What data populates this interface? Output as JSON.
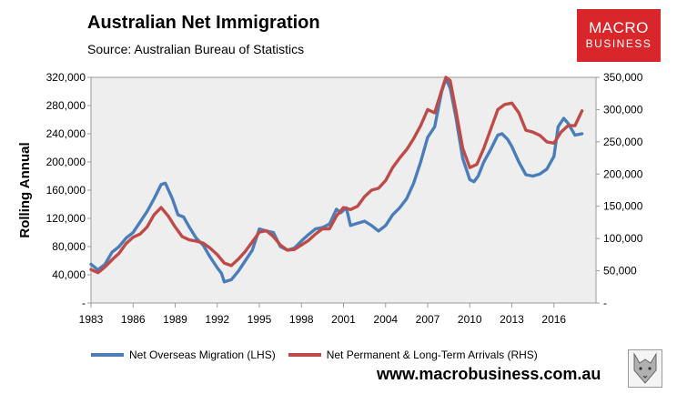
{
  "header": {
    "title": "Australian Net Immigration",
    "subtitle": "Source: Australian Bureau of Statistics"
  },
  "logo": {
    "line1": "MACRO",
    "line2": "BUSINESS"
  },
  "footer": {
    "website": "www.macrobusiness.com.au"
  },
  "icons": {
    "logo_image": "wolf-icon"
  },
  "colors": {
    "series_lhs": "#4a7ebb",
    "series_rhs": "#be4b48",
    "plot_bg": "#eeeeee",
    "brand": "#d9262a"
  },
  "chart_data": {
    "type": "line",
    "title": "Australian Net Immigration",
    "ylabel": "Rolling Annual",
    "xlabel": "",
    "x_ticks": [
      "1983",
      "1986",
      "1989",
      "1992",
      "1995",
      "1998",
      "2001",
      "2004",
      "2007",
      "2010",
      "2013",
      "2016"
    ],
    "xlim": [
      1983,
      2019
    ],
    "y_left": {
      "lim": [
        0,
        320000
      ],
      "ticks": [
        {
          "value": 0,
          "label": "-"
        },
        {
          "value": 40000,
          "label": "40,000"
        },
        {
          "value": 80000,
          "label": "80,000"
        },
        {
          "value": 120000,
          "label": "120,000"
        },
        {
          "value": 160000,
          "label": "160,000"
        },
        {
          "value": 200000,
          "label": "200,000"
        },
        {
          "value": 240000,
          "label": "240,000"
        },
        {
          "value": 280000,
          "label": "280,000"
        },
        {
          "value": 320000,
          "label": "320,000"
        }
      ]
    },
    "y_right": {
      "lim": [
        0,
        350000
      ],
      "ticks": [
        {
          "value": 0,
          "label": "-"
        },
        {
          "value": 50000,
          "label": "50,000"
        },
        {
          "value": 100000,
          "label": "100,000"
        },
        {
          "value": 150000,
          "label": "150,000"
        },
        {
          "value": 200000,
          "label": "200,000"
        },
        {
          "value": 250000,
          "label": "250,000"
        },
        {
          "value": 300000,
          "label": "300,000"
        },
        {
          "value": 350000,
          "label": "350,000"
        }
      ]
    },
    "series": [
      {
        "name": "Net Overseas Migration (LHS)",
        "axis": "left",
        "x": [
          1983,
          1983.5,
          1984,
          1984.5,
          1985,
          1985.5,
          1986,
          1986.5,
          1987,
          1987.5,
          1988,
          1988.3,
          1988.8,
          1989.2,
          1989.6,
          1990,
          1990.5,
          1991,
          1991.5,
          1992,
          1992.3,
          1992.5,
          1993,
          1993.5,
          1994,
          1994.5,
          1995,
          1995.5,
          1996,
          1996.5,
          1997,
          1997.5,
          1998,
          1998.5,
          1999,
          1999.5,
          2000,
          2000.5,
          2000.8,
          2001.2,
          2001.5,
          2002,
          2002.5,
          2003,
          2003.5,
          2004,
          2004.5,
          2005,
          2005.5,
          2006,
          2006.5,
          2007,
          2007.5,
          2008,
          2008.3,
          2008.6,
          2009,
          2009.5,
          2010,
          2010.3,
          2010.6,
          2011,
          2011.5,
          2012,
          2012.3,
          2012.7,
          2013,
          2013.5,
          2014,
          2014.5,
          2015,
          2015.5,
          2016,
          2016.3,
          2016.7,
          2017,
          2017.5,
          2018
        ],
        "values": [
          55000,
          47000,
          55000,
          72000,
          80000,
          92000,
          100000,
          115000,
          130000,
          148000,
          168000,
          170000,
          148000,
          125000,
          122000,
          108000,
          92000,
          82000,
          65000,
          50000,
          42000,
          30000,
          33000,
          45000,
          60000,
          75000,
          105000,
          102000,
          100000,
          80000,
          75000,
          78000,
          88000,
          97000,
          105000,
          107000,
          112000,
          133000,
          128000,
          135000,
          110000,
          113000,
          116000,
          110000,
          102000,
          110000,
          125000,
          135000,
          148000,
          170000,
          200000,
          235000,
          250000,
          300000,
          318000,
          305000,
          265000,
          205000,
          175000,
          172000,
          180000,
          200000,
          218000,
          238000,
          240000,
          232000,
          222000,
          200000,
          182000,
          180000,
          183000,
          190000,
          208000,
          250000,
          262000,
          255000,
          238000,
          240000
        ]
      },
      {
        "name": "Net Permanent & Long-Term Arrivals (RHS)",
        "axis": "right",
        "x": [
          1983,
          1983.5,
          1984,
          1984.5,
          1985,
          1985.5,
          1986,
          1986.5,
          1987,
          1987.5,
          1988,
          1988.5,
          1989,
          1989.5,
          1990,
          1990.5,
          1991,
          1991.5,
          1992,
          1992.5,
          1993,
          1993.5,
          1994,
          1994.5,
          1995,
          1995.5,
          1996,
          1996.5,
          1997,
          1997.5,
          1998,
          1998.5,
          1999,
          1999.5,
          2000,
          2000.5,
          2001,
          2001.5,
          2002,
          2002.5,
          2003,
          2003.5,
          2004,
          2004.5,
          2005,
          2005.5,
          2006,
          2006.5,
          2007,
          2007.5,
          2008,
          2008.3,
          2008.6,
          2009,
          2009.5,
          2010,
          2010.5,
          2011,
          2011.5,
          2012,
          2012.5,
          2013,
          2013.5,
          2014,
          2014.5,
          2015,
          2015.5,
          2016,
          2016.5,
          2017,
          2017.5,
          2018
        ],
        "values": [
          52000,
          47000,
          56000,
          67000,
          77000,
          92000,
          102000,
          107000,
          118000,
          137000,
          148000,
          135000,
          118000,
          103000,
          98000,
          96000,
          93000,
          85000,
          75000,
          62000,
          58000,
          68000,
          80000,
          95000,
          110000,
          112000,
          103000,
          90000,
          82000,
          83000,
          90000,
          97000,
          107000,
          115000,
          115000,
          135000,
          148000,
          145000,
          150000,
          165000,
          175000,
          178000,
          190000,
          210000,
          225000,
          238000,
          255000,
          275000,
          300000,
          295000,
          330000,
          350000,
          345000,
          300000,
          240000,
          210000,
          215000,
          240000,
          270000,
          300000,
          308000,
          310000,
          295000,
          268000,
          265000,
          260000,
          250000,
          248000,
          265000,
          275000,
          275000,
          298000
        ]
      }
    ]
  }
}
